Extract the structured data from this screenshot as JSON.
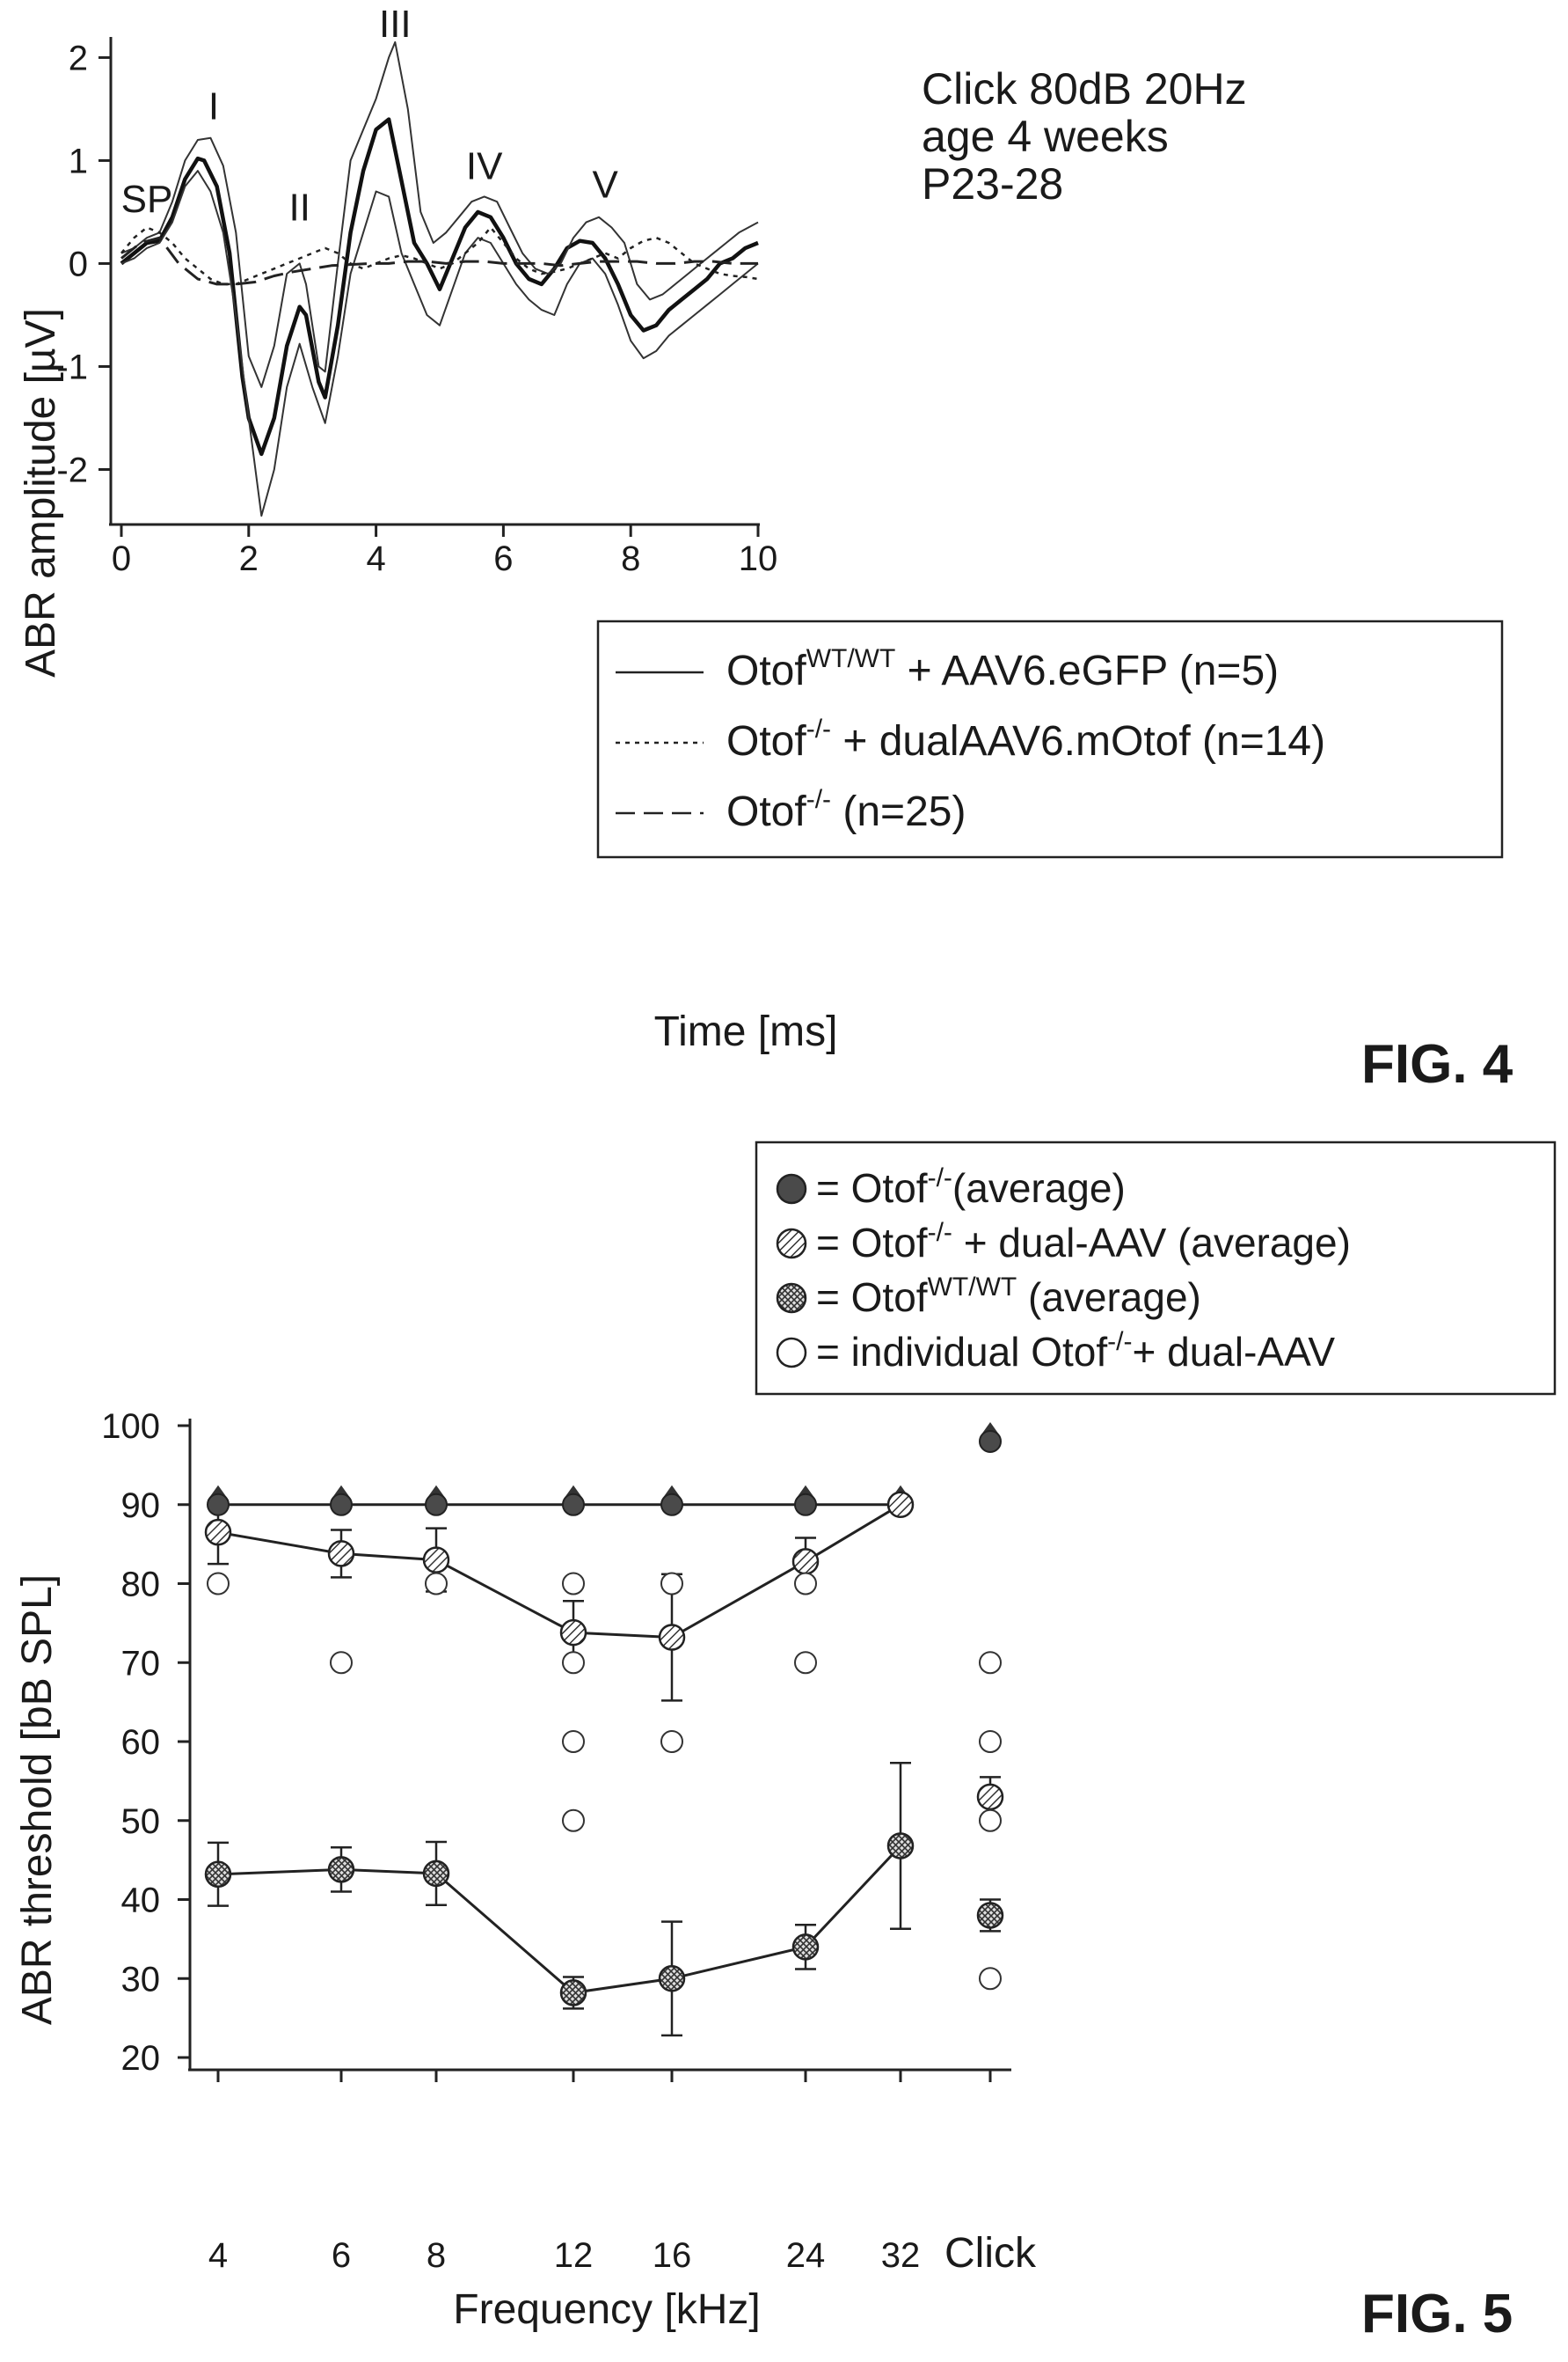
{
  "fig4": {
    "label": "FIG. 4",
    "conditions": [
      "Click 80dB 20Hz",
      "age 4 weeks",
      "P23-28"
    ],
    "chart_data": {
      "type": "line",
      "xlabel": "Time [ms]",
      "ylabel": "ABR amplitude [µV]",
      "xlim": [
        0,
        10
      ],
      "ylim": [
        -2.5,
        2.2
      ],
      "x_ticks": [
        "0",
        "2",
        "4",
        "6",
        "8",
        "10"
      ],
      "y_ticks": [
        "-2",
        "-1",
        "0",
        "1",
        "2"
      ],
      "peak_labels": [
        {
          "text": "SP",
          "x": 0.4,
          "y": 0.5
        },
        {
          "text": "I",
          "x": 1.45,
          "y": 1.4
        },
        {
          "text": "II",
          "x": 2.8,
          "y": 0.42
        },
        {
          "text": "III",
          "x": 4.3,
          "y": 2.2
        },
        {
          "text": "IV",
          "x": 5.7,
          "y": 0.82
        },
        {
          "text": "V",
          "x": 7.6,
          "y": 0.64
        }
      ],
      "legend": {
        "placement": "lower-right",
        "entries": [
          {
            "base": "Otof",
            "sup": "WT/WT",
            "rest": " + AAV6.eGFP (n=5)",
            "style": "solid"
          },
          {
            "base": "Otof",
            "sup": "-/-",
            "rest": " + dualAAV6.mOtof (n=14)",
            "style": "dotted"
          },
          {
            "base": "Otof",
            "sup": "-/-",
            "rest": "  (n=25)",
            "style": "dashed"
          }
        ]
      },
      "series": [
        {
          "style": "solid-bold",
          "x": [
            0,
            0.2,
            0.4,
            0.6,
            0.8,
            1.0,
            1.2,
            1.3,
            1.5,
            1.7,
            1.9,
            2.0,
            2.2,
            2.4,
            2.6,
            2.8,
            2.9,
            3.1,
            3.2,
            3.4,
            3.6,
            3.8,
            4.0,
            4.2,
            4.4,
            4.6,
            4.8,
            5.0,
            5.2,
            5.4,
            5.6,
            5.8,
            6.0,
            6.2,
            6.4,
            6.6,
            6.8,
            7.0,
            7.2,
            7.4,
            7.6,
            7.8,
            8.0,
            8.2,
            8.4,
            8.6,
            8.8,
            9.0,
            9.2,
            9.4,
            9.6,
            9.8,
            10
          ],
          "y": [
            0,
            0.1,
            0.2,
            0.22,
            0.45,
            0.82,
            1.02,
            1.0,
            0.75,
            0.1,
            -1.1,
            -1.5,
            -1.85,
            -1.5,
            -0.8,
            -0.42,
            -0.5,
            -1.15,
            -1.3,
            -0.6,
            0.3,
            0.9,
            1.3,
            1.4,
            0.8,
            0.2,
            0.0,
            -0.25,
            0.05,
            0.35,
            0.5,
            0.45,
            0.25,
            0.0,
            -0.15,
            -0.2,
            -0.05,
            0.15,
            0.22,
            0.2,
            0.05,
            -0.2,
            -0.5,
            -0.65,
            -0.6,
            -0.45,
            -0.35,
            -0.25,
            -0.15,
            0,
            0.05,
            0.15,
            0.2
          ]
        },
        {
          "style": "solid-thin",
          "x": [
            0,
            0.2,
            0.4,
            0.6,
            0.8,
            1.0,
            1.2,
            1.4,
            1.6,
            1.8,
            2.0,
            2.2,
            2.4,
            2.6,
            2.8,
            2.9,
            3.1,
            3.2,
            3.4,
            3.6,
            3.8,
            4.0,
            4.2,
            4.3,
            4.5,
            4.7,
            4.9,
            5.1,
            5.3,
            5.5,
            5.7,
            5.9,
            6.1,
            6.3,
            6.5,
            6.7,
            6.9,
            7.1,
            7.3,
            7.5,
            7.7,
            7.9,
            8.1,
            8.3,
            8.5,
            8.7,
            8.9,
            9.1,
            9.3,
            9.5,
            9.7,
            10
          ],
          "y": [
            0.1,
            0.15,
            0.25,
            0.3,
            0.6,
            1.0,
            1.2,
            1.22,
            0.95,
            0.3,
            -0.9,
            -1.2,
            -0.8,
            -0.1,
            0.0,
            -0.2,
            -1.0,
            -1.05,
            0.0,
            1.0,
            1.3,
            1.6,
            2.0,
            2.15,
            1.5,
            0.5,
            0.2,
            0.3,
            0.45,
            0.6,
            0.65,
            0.6,
            0.35,
            0.1,
            -0.05,
            -0.1,
            0.0,
            0.25,
            0.4,
            0.45,
            0.35,
            0.2,
            -0.2,
            -0.35,
            -0.3,
            -0.2,
            -0.1,
            0.0,
            0.1,
            0.2,
            0.3,
            0.4
          ]
        },
        {
          "style": "solid-thin",
          "x": [
            0,
            0.2,
            0.4,
            0.6,
            0.8,
            1.0,
            1.2,
            1.4,
            1.6,
            1.8,
            2.0,
            2.2,
            2.4,
            2.6,
            2.8,
            3.0,
            3.2,
            3.4,
            3.6,
            3.8,
            4.0,
            4.2,
            4.4,
            4.6,
            4.8,
            5.0,
            5.2,
            5.4,
            5.6,
            5.8,
            6.0,
            6.2,
            6.4,
            6.6,
            6.8,
            7.0,
            7.2,
            7.4,
            7.6,
            7.8,
            8.0,
            8.2,
            8.4,
            8.6,
            8.8,
            9.0,
            9.2,
            9.4,
            9.6,
            9.8,
            10
          ],
          "y": [
            0.0,
            0.05,
            0.15,
            0.2,
            0.4,
            0.75,
            0.9,
            0.7,
            0.3,
            -0.5,
            -1.5,
            -2.45,
            -2.0,
            -1.2,
            -0.78,
            -1.2,
            -1.55,
            -0.9,
            -0.1,
            0.3,
            0.7,
            0.65,
            0.1,
            -0.2,
            -0.5,
            -0.6,
            -0.25,
            0.1,
            0.25,
            0.2,
            0.0,
            -0.2,
            -0.35,
            -0.45,
            -0.5,
            -0.2,
            0.0,
            0.05,
            -0.1,
            -0.4,
            -0.75,
            -0.92,
            -0.85,
            -0.7,
            -0.6,
            -0.5,
            -0.4,
            -0.3,
            -0.2,
            -0.1,
            0.0
          ]
        },
        {
          "style": "dotted",
          "x": [
            0,
            0.2,
            0.4,
            0.6,
            0.8,
            1.0,
            1.2,
            1.4,
            1.6,
            1.8,
            2.0,
            2.2,
            2.4,
            2.6,
            2.8,
            3.0,
            3.2,
            3.4,
            3.6,
            3.8,
            4.0,
            4.2,
            4.4,
            4.6,
            4.8,
            5.0,
            5.2,
            5.4,
            5.6,
            5.8,
            6.0,
            6.2,
            6.4,
            6.6,
            6.8,
            7.0,
            7.2,
            7.4,
            7.6,
            7.8,
            8.0,
            8.2,
            8.4,
            8.6,
            8.8,
            9.0,
            9.2,
            9.4,
            9.6,
            9.8,
            10
          ],
          "y": [
            0.1,
            0.25,
            0.35,
            0.3,
            0.2,
            0.05,
            -0.05,
            -0.15,
            -0.2,
            -0.2,
            -0.15,
            -0.1,
            -0.05,
            0.0,
            0.05,
            0.1,
            0.15,
            0.1,
            0.0,
            -0.05,
            0.0,
            0.05,
            0.08,
            0.05,
            0.0,
            -0.05,
            0.0,
            0.1,
            0.2,
            0.35,
            0.2,
            0.05,
            -0.05,
            -0.1,
            -0.08,
            -0.05,
            0.0,
            0.05,
            0.1,
            0.05,
            0.15,
            0.22,
            0.25,
            0.2,
            0.1,
            0.0,
            -0.05,
            -0.1,
            -0.12,
            -0.13,
            -0.15
          ]
        },
        {
          "style": "dashed",
          "x": [
            0,
            0.3,
            0.6,
            0.9,
            1.2,
            1.5,
            1.8,
            2.1,
            2.4,
            2.7,
            3.0,
            3.3,
            3.6,
            3.9,
            4.2,
            4.5,
            4.8,
            5.1,
            5.4,
            5.7,
            6.0,
            6.3,
            6.6,
            6.9,
            7.2,
            7.5,
            7.8,
            8.1,
            8.4,
            8.7,
            9.0,
            9.3,
            9.6,
            10
          ],
          "y": [
            0.05,
            0.2,
            0.25,
            0.0,
            -0.15,
            -0.2,
            -0.2,
            -0.18,
            -0.12,
            -0.08,
            -0.05,
            -0.02,
            -0.01,
            0.0,
            0.0,
            0.02,
            0.02,
            0.0,
            0.02,
            0.02,
            0.0,
            0.0,
            0.0,
            -0.02,
            0.0,
            0.02,
            0.02,
            0.02,
            0.0,
            0.0,
            0.02,
            0.02,
            0.0,
            0.0
          ]
        }
      ]
    }
  },
  "fig5": {
    "label": "FIG. 5",
    "chart_data": {
      "type": "scatter",
      "xlabel": "Frequency [kHz]",
      "ylabel": "ABR threshold [bB SPL]",
      "ylim": [
        20,
        100
      ],
      "categories": [
        "4",
        "6",
        "8",
        "12",
        "16",
        "24",
        "32",
        "Click"
      ],
      "y_ticks": [
        "20",
        "30",
        "40",
        "50",
        "60",
        "70",
        "80",
        "90",
        "100"
      ],
      "legend": {
        "placement": "top-right",
        "entries": [
          {
            "symbol": "filled",
            "pre": "= ",
            "base": "Otof",
            "sup": "-/-",
            "rest": "(average)"
          },
          {
            "symbol": "hatched",
            "pre": "= ",
            "base": "Otof",
            "sup": "-/-",
            "rest": " + dual-AAV (average)"
          },
          {
            "symbol": "crosshatched",
            "pre": "= ",
            "base": "Otof",
            "sup": "WT/WT",
            "rest": " (average)"
          },
          {
            "symbol": "open",
            "pre": "=  individual ",
            "base": "Otof",
            "sup": "-/-",
            "rest": "+ dual-AAV"
          }
        ]
      },
      "series": [
        {
          "symbol": "filled",
          "connected": true,
          "values": [
            90,
            90,
            90,
            90,
            90,
            90,
            90,
            98
          ]
        },
        {
          "symbol": "hatched",
          "connected": true,
          "values": [
            86.5,
            83.8,
            83.0,
            73.8,
            73.2,
            82.8,
            90.0,
            53.0
          ],
          "err": [
            4.0,
            3.0,
            4.0,
            4.0,
            8.0,
            3.0,
            0,
            2.5
          ]
        },
        {
          "symbol": "crosshatched",
          "connected": true,
          "values": [
            43.2,
            43.8,
            43.3,
            28.2,
            30.0,
            34.0,
            46.8,
            38.0
          ],
          "err": [
            4.0,
            2.8,
            4.0,
            2.0,
            7.2,
            2.8,
            10.5,
            2.0
          ]
        },
        {
          "symbol": "open",
          "connected": false,
          "points": [
            [
              0,
              80
            ],
            [
              1,
              70
            ],
            [
              2,
              80
            ],
            [
              3,
              80
            ],
            [
              3,
              70
            ],
            [
              3,
              60
            ],
            [
              3,
              50
            ],
            [
              4,
              80
            ],
            [
              4,
              60
            ],
            [
              5,
              80
            ],
            [
              5,
              70
            ],
            [
              7,
              70
            ],
            [
              7,
              60
            ],
            [
              7,
              50
            ],
            [
              7,
              30
            ]
          ]
        }
      ]
    }
  }
}
